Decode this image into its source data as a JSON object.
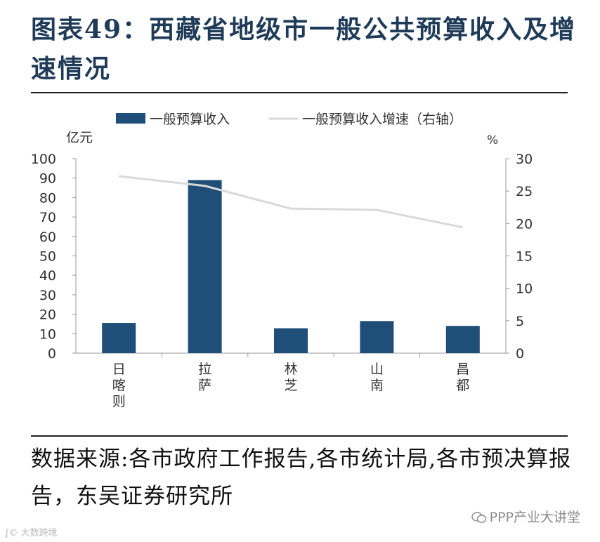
{
  "title": "图表49：西藏省地级市一般公共预算收入及增速情况",
  "source": "数据来源:各市政府工作报告,各市统计局,各市预决算报告，东吴证券研究所",
  "watermark_right": "PPP产业大讲堂",
  "watermark_left": "大数跨境",
  "chart_data": {
    "type": "bar",
    "categories": [
      "日喀则",
      "拉萨",
      "林芝",
      "山南",
      "昌都"
    ],
    "series": [
      {
        "name": "一般预算收入",
        "type": "bar",
        "axis": "left",
        "color": "#1f4e79",
        "values": [
          15.5,
          89,
          12.8,
          16.5,
          14
        ]
      },
      {
        "name": "一般预算收入增速（右轴）",
        "type": "line",
        "axis": "right",
        "color": "#d9d9d9",
        "values": [
          27.3,
          25.8,
          22.3,
          22.1,
          19.4
        ]
      }
    ],
    "ylabel_left": "亿元",
    "ylabel_right": "%",
    "ylim_left": [
      0,
      100
    ],
    "ylim_right": [
      0,
      30
    ],
    "yticks_left": [
      "0",
      "10",
      "20",
      "30",
      "40",
      "50",
      "60",
      "70",
      "80",
      "90",
      "100"
    ],
    "yticks_right": [
      "0",
      "5",
      "10",
      "15",
      "20",
      "25",
      "30"
    ],
    "legend_position": "top",
    "grid": false
  }
}
